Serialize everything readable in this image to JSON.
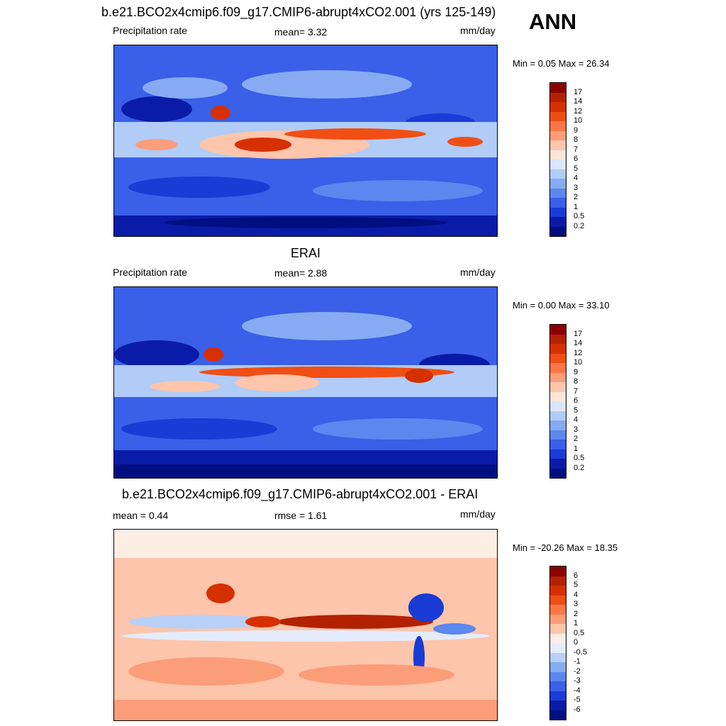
{
  "season": "ANN",
  "panels": [
    {
      "title": "b.e21.BCO2x4cmip6.f09_g17.CMIP6-abrupt4xCO2.001 (yrs 125-149)",
      "left_label": "Precipitation rate",
      "center_label": "mean=   3.32",
      "units": "mm/day",
      "minmax": "Min =   0.05 Max =  26.34",
      "levels": [
        "17",
        "14",
        "12",
        "10",
        "9",
        "8",
        "7",
        "6",
        "5",
        "4",
        "3",
        "2",
        "1",
        "0.5",
        "0.2"
      ]
    },
    {
      "title": "ERAI",
      "left_label": "Precipitation rate",
      "center_label": "mean=   2.88",
      "units": "mm/day",
      "minmax": "Min =   0.00 Max =  33.10",
      "levels": [
        "17",
        "14",
        "12",
        "10",
        "9",
        "8",
        "7",
        "6",
        "5",
        "4",
        "3",
        "2",
        "1",
        "0.5",
        "0.2"
      ]
    },
    {
      "title": "b.e21.BCO2x4cmip6.f09_g17.CMIP6-abrupt4xCO2.001 - ERAI",
      "left_label": "mean =   0.44",
      "center_label": "rmse =   1.61",
      "units": "mm/day",
      "minmax": "Min = -20.26 Max =  18.35",
      "levels": [
        "6",
        "5",
        "4",
        "3",
        "2",
        "1",
        "0.5",
        "0",
        "-0.5",
        "-1",
        "-2",
        "-3",
        "-4",
        "-5",
        "-6"
      ]
    }
  ],
  "colors": {
    "abs_scale": [
      "#8b0000",
      "#b22200",
      "#d63000",
      "#f04e14",
      "#fb7746",
      "#fc9d7a",
      "#fdc5ab",
      "#fde6d6",
      "#d9e6fb",
      "#b0ccf7",
      "#86abf2",
      "#5c87ee",
      "#3a5fe8",
      "#1a3bd6",
      "#0a1ba8",
      "#000f80"
    ],
    "diff_scale": [
      "#8b0000",
      "#b22200",
      "#d63000",
      "#f04e14",
      "#fb7746",
      "#fc9d7a",
      "#fdc5ab",
      "#fdeee4",
      "#e4ecfb",
      "#b9d0f7",
      "#86abf2",
      "#5c87ee",
      "#3a5fe8",
      "#1a3bd6",
      "#0a1ba8",
      "#000f80"
    ]
  }
}
